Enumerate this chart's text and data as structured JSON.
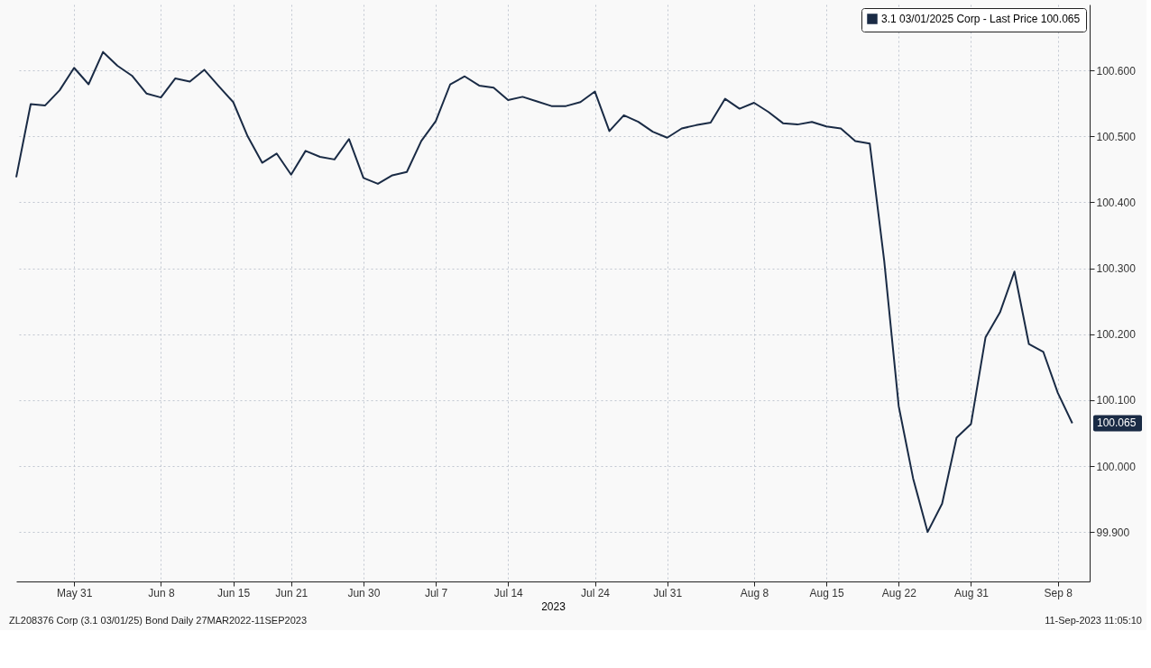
{
  "chart_data": {
    "type": "line",
    "categories": [
      null,
      null,
      null,
      null,
      "May 31",
      null,
      null,
      null,
      null,
      null,
      "Jun 8",
      null,
      null,
      null,
      null,
      "Jun 15",
      null,
      null,
      null,
      "Jun 21",
      null,
      null,
      null,
      null,
      "Jun 30",
      null,
      null,
      null,
      null,
      "Jul 7",
      null,
      null,
      null,
      null,
      "Jul 14",
      null,
      null,
      null,
      null,
      null,
      "Jul 24",
      null,
      null,
      null,
      null,
      "Jul 31",
      null,
      null,
      null,
      null,
      null,
      "Aug 8",
      null,
      null,
      null,
      null,
      "Aug 15",
      null,
      null,
      null,
      null,
      "Aug 22",
      null,
      null,
      null,
      null,
      "Aug 31",
      null,
      null,
      null,
      null,
      null,
      "Sep 8",
      null
    ],
    "series": [
      {
        "name": "3.1 03/01/2025 Corp - Last Price 100.065",
        "color": "#1a2b45",
        "values": [
          100.438,
          100.549,
          100.547,
          100.57,
          100.604,
          100.579,
          100.628,
          100.607,
          100.592,
          100.565,
          100.559,
          100.588,
          100.583,
          100.601,
          100.576,
          100.552,
          100.5,
          100.46,
          100.474,
          100.442,
          100.478,
          100.469,
          100.465,
          100.496,
          100.437,
          100.428,
          100.441,
          100.446,
          100.493,
          100.523,
          100.579,
          100.591,
          100.577,
          100.574,
          100.555,
          100.56,
          100.553,
          100.546,
          100.546,
          100.552,
          100.568,
          100.508,
          100.532,
          100.522,
          100.507,
          100.498,
          100.512,
          100.517,
          100.521,
          100.557,
          100.542,
          100.551,
          100.537,
          100.52,
          100.518,
          100.522,
          100.515,
          100.512,
          100.493,
          100.489,
          100.311,
          100.091,
          99.981,
          99.9,
          99.943,
          100.043,
          100.064,
          100.195,
          100.233,
          100.295,
          100.185,
          100.173,
          100.111,
          100.065
        ]
      }
    ],
    "xlabel": "2023",
    "ylim": [
      99.825,
      100.7
    ],
    "yticks": [
      {
        "value": 99.9,
        "label": "99.900"
      },
      {
        "value": 100.0,
        "label": "100.000"
      },
      {
        "value": 100.1,
        "label": "100.100"
      },
      {
        "value": 100.2,
        "label": "100.200"
      },
      {
        "value": 100.3,
        "label": "100.300"
      },
      {
        "value": 100.4,
        "label": "100.400"
      },
      {
        "value": 100.5,
        "label": "100.500"
      },
      {
        "value": 100.6,
        "label": "100.600"
      }
    ],
    "grid": true,
    "legend": "top right",
    "line_style": "solid",
    "annotations": [
      "100.065",
      "ZL208376 Corp (3.1 03/01/25) Bond  Daily 27MAR2022-11SEP2023",
      "11-Sep-2023 11:05:10"
    ]
  }
}
